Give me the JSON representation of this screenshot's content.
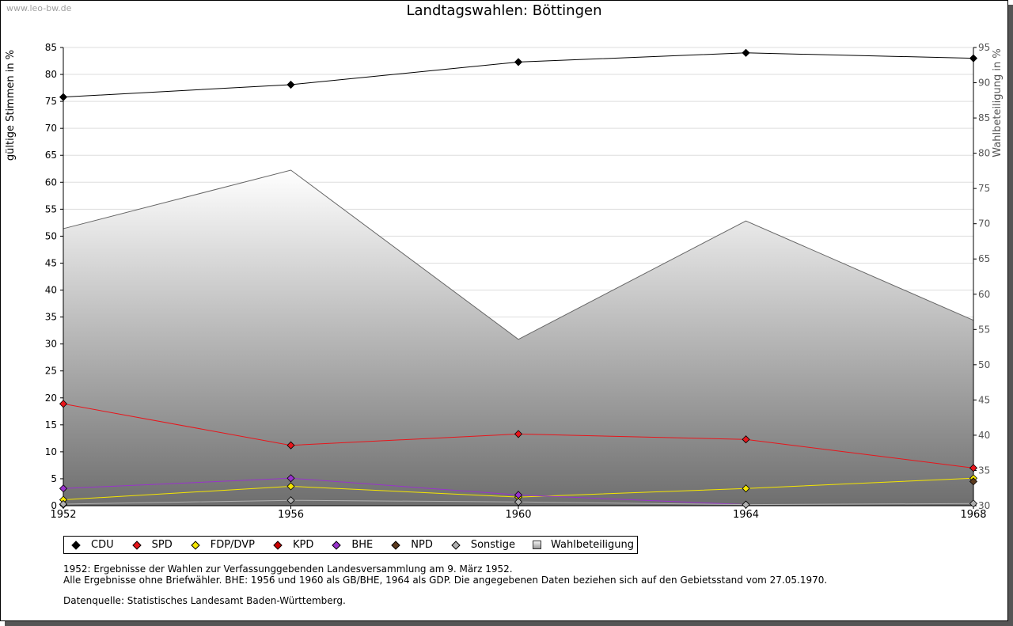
{
  "watermark": "www.leo-bw.de",
  "title": "Landtagswahlen: Böttingen",
  "chart_data": {
    "type": "line",
    "title": "Landtagswahlen: Böttingen",
    "ylabel": "gültige Stimmen in %",
    "y2label": "Wahlbeteiligung in %",
    "x": [
      "1952",
      "1956",
      "1960",
      "1964",
      "1968"
    ],
    "ylim": [
      0,
      85
    ],
    "y_ticks": [
      0,
      5,
      10,
      15,
      20,
      25,
      30,
      35,
      40,
      45,
      50,
      55,
      60,
      65,
      70,
      75,
      80,
      85
    ],
    "y2lim": [
      30,
      95
    ],
    "y2_ticks": [
      30,
      35,
      40,
      45,
      50,
      55,
      60,
      65,
      70,
      75,
      80,
      85,
      90,
      95
    ],
    "grid": true,
    "series": [
      {
        "name": "CDU",
        "color": "#000000",
        "values": [
          75.8,
          78.1,
          82.3,
          84.0,
          83.0
        ]
      },
      {
        "name": "SPD",
        "color": "#e8151b",
        "values": [
          18.9,
          11.2,
          13.3,
          12.3,
          7.0
        ]
      },
      {
        "name": "FDP/DVP",
        "color": "#f5e600",
        "values": [
          1.1,
          3.6,
          1.6,
          3.2,
          5.1
        ]
      },
      {
        "name": "KPD",
        "color": "#cc0000",
        "values": [
          0.2,
          null,
          null,
          null,
          null
        ]
      },
      {
        "name": "BHE",
        "color": "#9933cc",
        "values": [
          3.2,
          5.1,
          2.0,
          0.2,
          null
        ]
      },
      {
        "name": "NPD",
        "color": "#5b3a1e",
        "values": [
          null,
          null,
          null,
          null,
          4.5
        ]
      },
      {
        "name": "Sonstige",
        "color": "#b0b0b0",
        "values": [
          0.3,
          1.0,
          0.7,
          0.2,
          0.4
        ]
      }
    ],
    "area": {
      "name": "Wahlbeteiligung",
      "axis": "right",
      "values": [
        69.3,
        77.6,
        53.6,
        70.4,
        56.3
      ]
    }
  },
  "legend": [
    {
      "label": "CDU",
      "color": "#000000",
      "shape": "diamond"
    },
    {
      "label": "SPD",
      "color": "#e8151b",
      "shape": "diamond"
    },
    {
      "label": "FDP/DVP",
      "color": "#f5e600",
      "shape": "diamond"
    },
    {
      "label": "KPD",
      "color": "#cc0000",
      "shape": "diamond"
    },
    {
      "label": "BHE",
      "color": "#9933cc",
      "shape": "diamond"
    },
    {
      "label": "NPD",
      "color": "#5b3a1e",
      "shape": "diamond"
    },
    {
      "label": "Sonstige",
      "color": "#b0b0b0",
      "shape": "diamond"
    },
    {
      "label": "Wahlbeteiligung",
      "color": "#aaaaaa",
      "shape": "square"
    }
  ],
  "notes": {
    "line1": "1952: Ergebnisse der Wahlen zur Verfassunggebenden Landesversammlung am 9. März 1952.",
    "line2": "Alle Ergebnisse ohne Briefwähler. BHE: 1956 und 1960 als GB/BHE, 1964 als GDP. Die angegebenen Daten beziehen sich auf den Gebietsstand vom 27.05.1970.",
    "source": "Datenquelle: Statistisches Landesamt Baden-Württemberg."
  }
}
